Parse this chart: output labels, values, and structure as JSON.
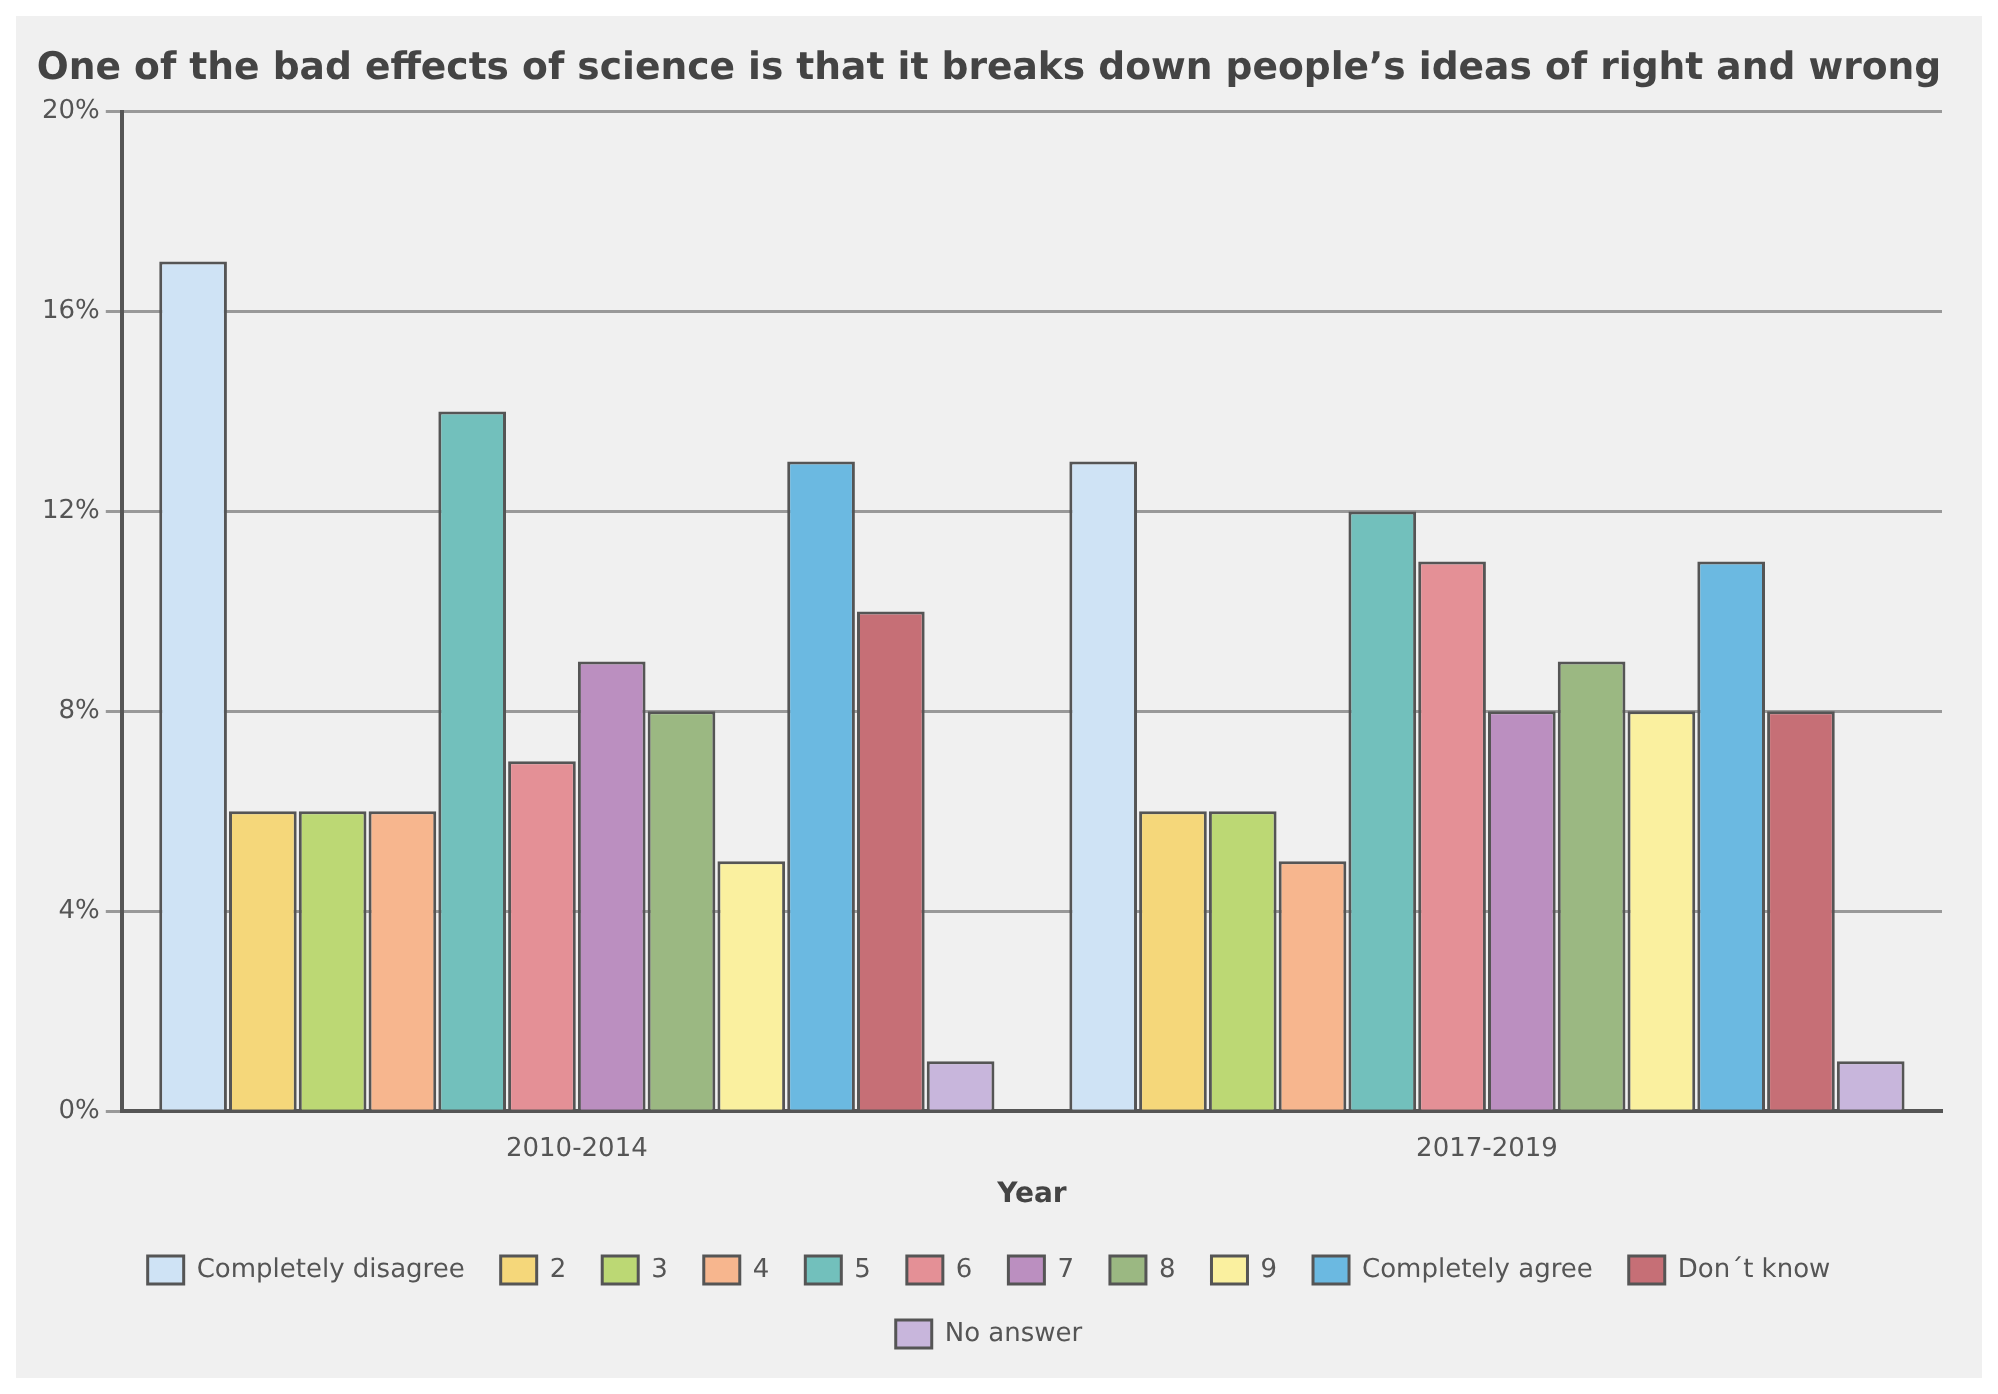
{
  "chart_data": {
    "type": "bar",
    "title": "One of the bad effects of science is that it breaks down people’s ideas of right and wrong",
    "xlabel": "Year",
    "categories": [
      "2010-2014",
      "2017-2019"
    ],
    "series": [
      {
        "name": "Completely disagree",
        "color": "#cfe3f5",
        "values": [
          17,
          13
        ]
      },
      {
        "name": "2",
        "color": "#f5d77a",
        "values": [
          6,
          6
        ]
      },
      {
        "name": "3",
        "color": "#bcd874",
        "values": [
          6,
          6
        ]
      },
      {
        "name": "4",
        "color": "#f7b68e",
        "values": [
          6,
          5
        ]
      },
      {
        "name": "5",
        "color": "#72c0bc",
        "values": [
          14,
          12
        ]
      },
      {
        "name": "6",
        "color": "#e49096",
        "values": [
          7,
          11
        ]
      },
      {
        "name": "7",
        "color": "#bb8fc0",
        "values": [
          9,
          8
        ]
      },
      {
        "name": "8",
        "color": "#9bb882",
        "values": [
          8,
          9
        ]
      },
      {
        "name": "9",
        "color": "#faf09f",
        "values": [
          5,
          8
        ]
      },
      {
        "name": "Completely agree",
        "color": "#6bb9e1",
        "values": [
          13,
          11
        ]
      },
      {
        "name": "Don´t know",
        "color": "#c66f76",
        "values": [
          10,
          8
        ]
      },
      {
        "name": "No answer",
        "color": "#c8b6dc",
        "values": [
          1,
          1
        ]
      }
    ],
    "ylim": [
      0,
      20
    ],
    "yticks": [
      {
        "value": 0,
        "label": "0%"
      },
      {
        "value": 4,
        "label": "4%"
      },
      {
        "value": 8,
        "label": "8%"
      },
      {
        "value": 12,
        "label": "12%"
      },
      {
        "value": 16,
        "label": "16%"
      },
      {
        "value": 20,
        "label": "20%"
      }
    ],
    "grid": "y",
    "legend": "bottom"
  }
}
